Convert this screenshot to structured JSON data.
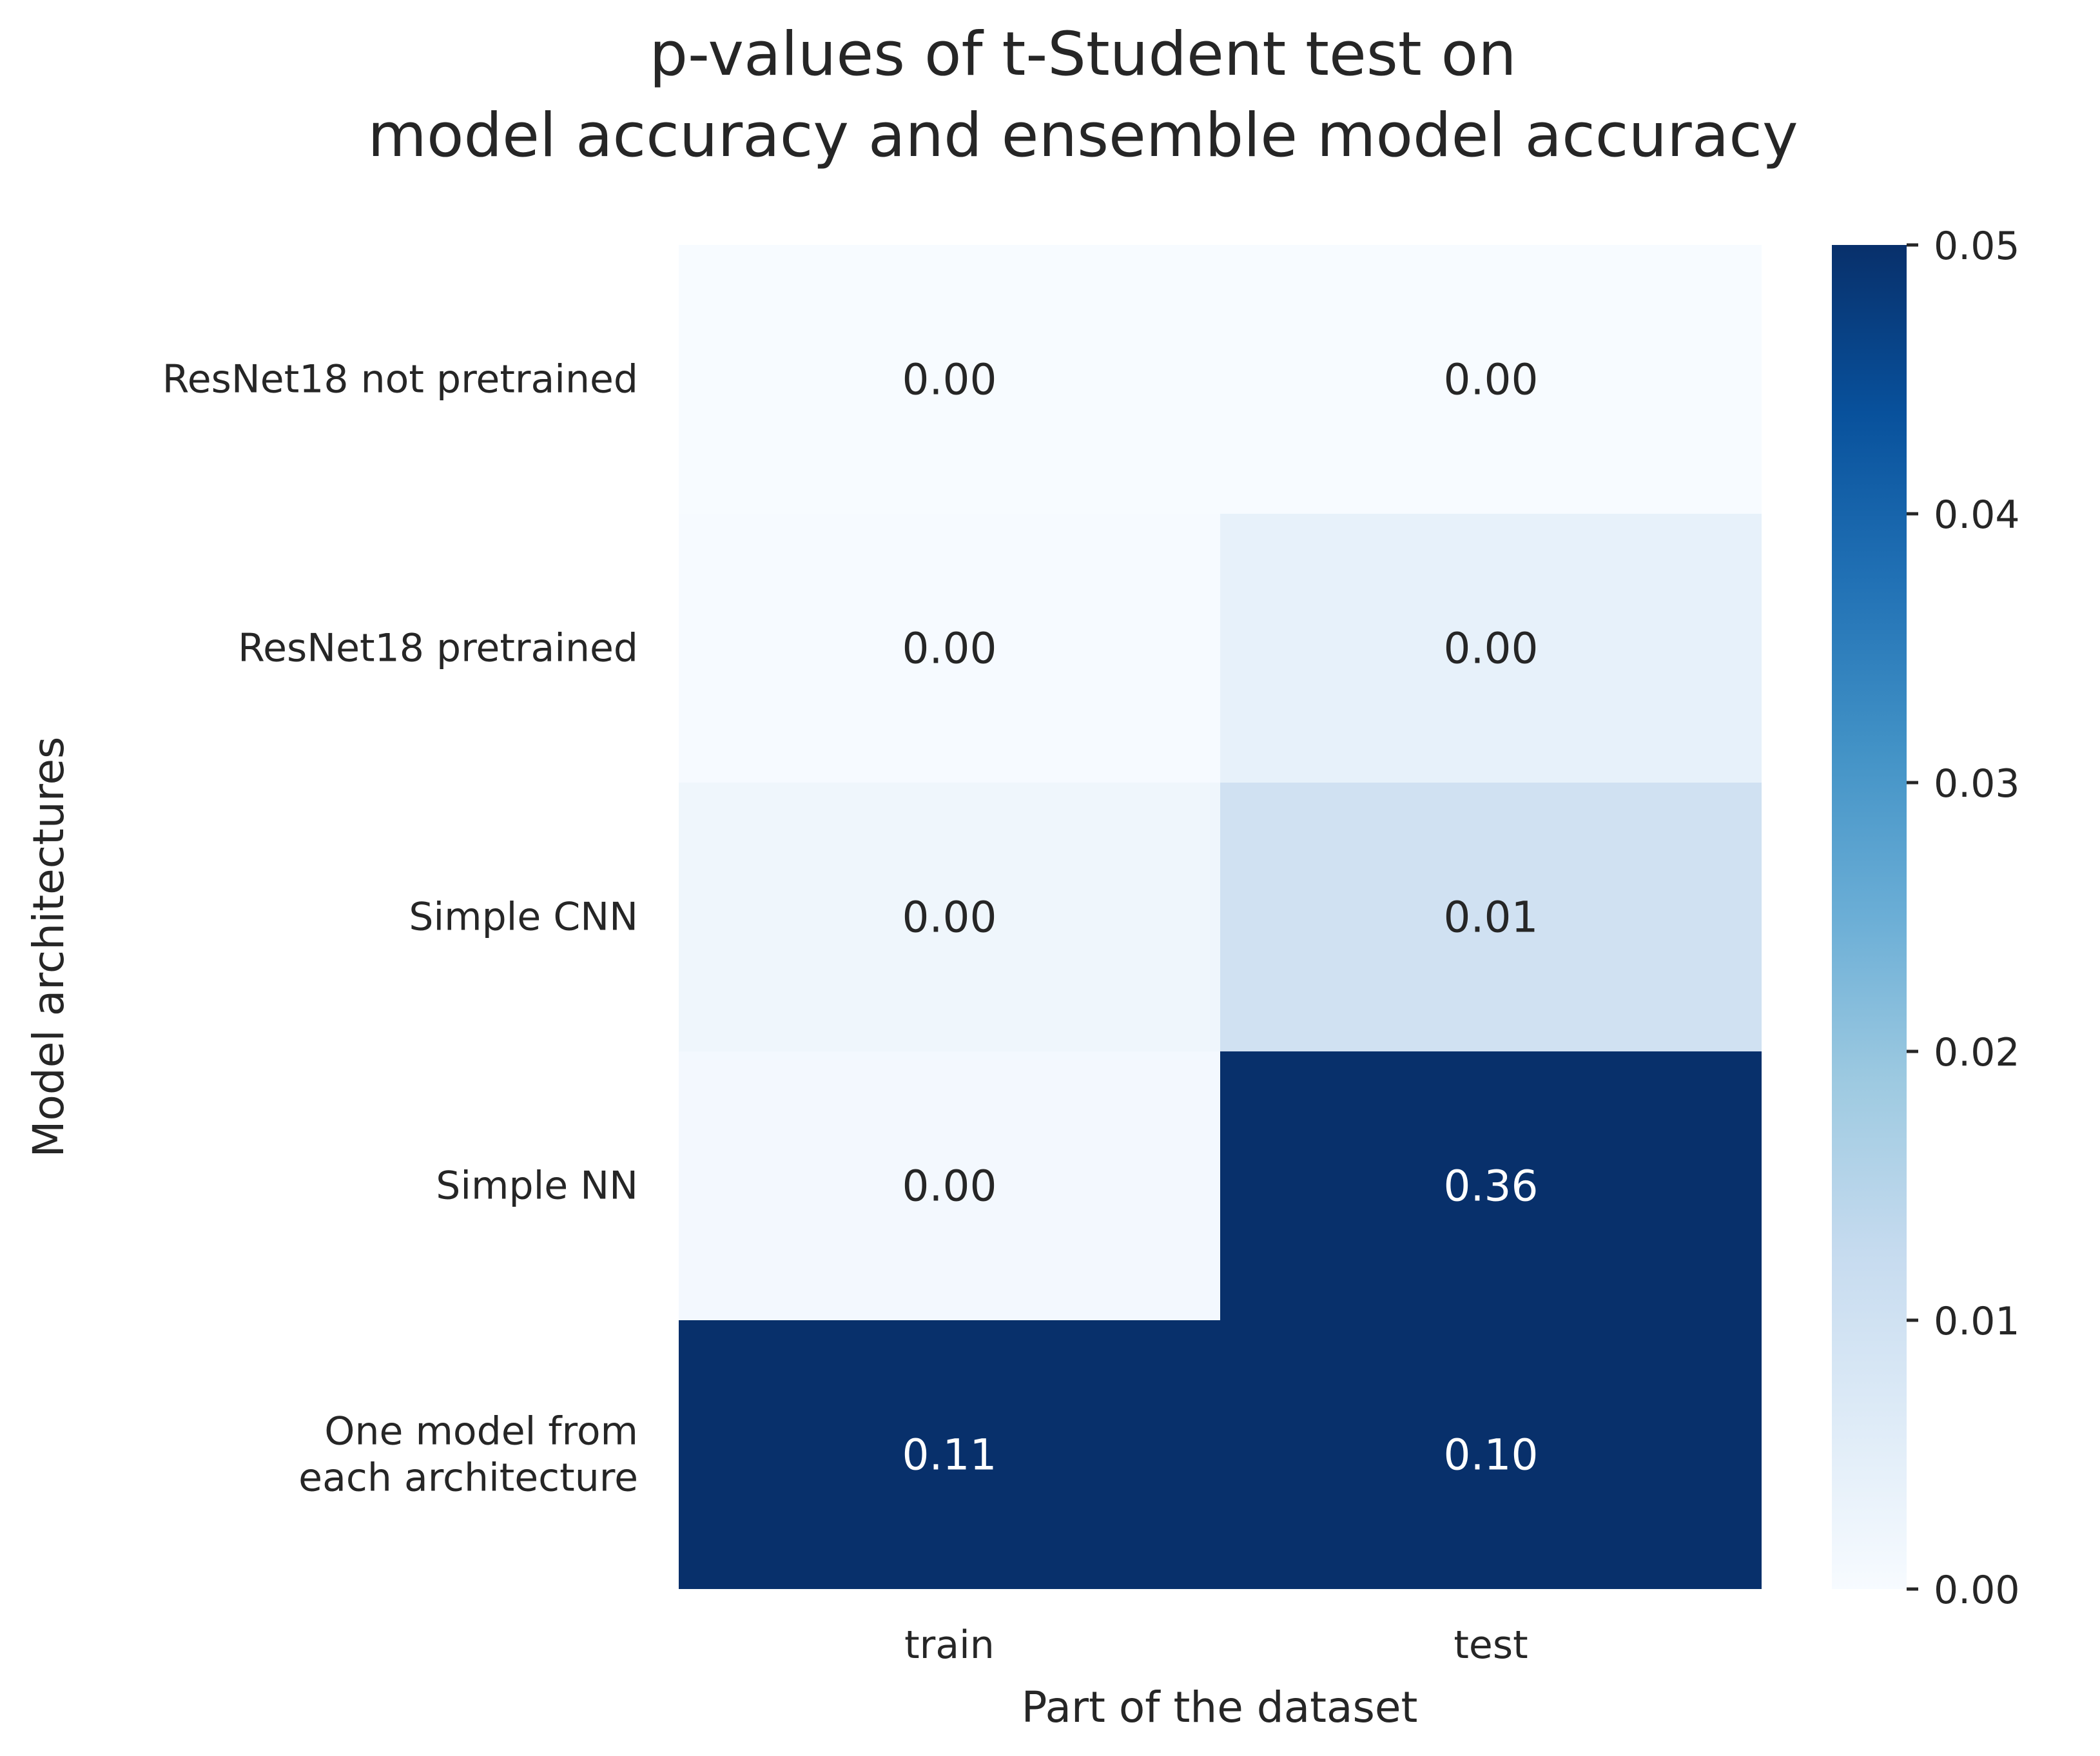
{
  "chart_data": {
    "type": "heatmap",
    "title_lines": [
      "p-values of t-Student test on",
      "model accuracy and ensemble model accuracy"
    ],
    "xlabel": "Part of the dataset",
    "ylabel": "Model architectures",
    "x_categories": [
      "train",
      "test"
    ],
    "y_categories": [
      [
        "ResNet18 not pretrained"
      ],
      [
        "ResNet18 pretrained"
      ],
      [
        "Simple CNN"
      ],
      [
        "Simple NN"
      ],
      [
        "One model from",
        "each architecture"
      ]
    ],
    "cells": [
      [
        {
          "value": 0.0,
          "label": "0.00"
        },
        {
          "value": 0.0,
          "label": "0.00"
        }
      ],
      [
        {
          "value": 0.0003,
          "label": "0.00"
        },
        {
          "value": 0.004,
          "label": "0.00"
        }
      ],
      [
        {
          "value": 0.002,
          "label": "0.00"
        },
        {
          "value": 0.01,
          "label": "0.01"
        }
      ],
      [
        {
          "value": 0.001,
          "label": "0.00"
        },
        {
          "value": 0.36,
          "label": "0.36"
        }
      ],
      [
        {
          "value": 0.11,
          "label": "0.11"
        },
        {
          "value": 0.1,
          "label": "0.10"
        }
      ]
    ],
    "colorbar": {
      "min": 0.0,
      "max": 0.05,
      "ticks": [
        "0.00",
        "0.01",
        "0.02",
        "0.03",
        "0.04",
        "0.05"
      ],
      "colormap": "Blues"
    }
  }
}
